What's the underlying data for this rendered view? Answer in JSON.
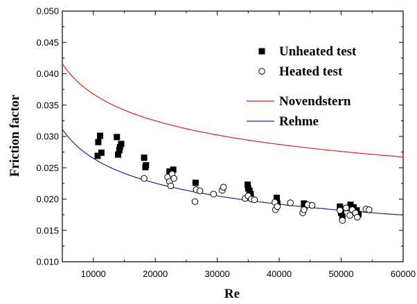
{
  "chart_data": {
    "type": "scatter",
    "title": "",
    "xlabel": "Re",
    "ylabel": "Friction factor",
    "xlim": [
      5000,
      60000
    ],
    "ylim": [
      0.01,
      0.05
    ],
    "x_ticks": [
      10000,
      20000,
      30000,
      40000,
      50000,
      60000
    ],
    "x_tick_labels": [
      "10000",
      "20000",
      "30000",
      "40000",
      "50000",
      "60000"
    ],
    "y_ticks": [
      0.01,
      0.015,
      0.02,
      0.025,
      0.03,
      0.035,
      0.04,
      0.045,
      0.05
    ],
    "y_tick_labels": [
      "0.010",
      "0.015",
      "0.020",
      "0.025",
      "0.030",
      "0.035",
      "0.040",
      "0.045",
      "0.050"
    ],
    "grid": false,
    "legend_position": "top-right",
    "series": [
      {
        "name": "Unheated test",
        "kind": "scatter",
        "marker": "filled-square",
        "color": "#000000",
        "points": [
          [
            10700,
            0.0269
          ],
          [
            10800,
            0.0291
          ],
          [
            11100,
            0.0301
          ],
          [
            11300,
            0.0274
          ],
          [
            13800,
            0.0299
          ],
          [
            14000,
            0.0271
          ],
          [
            14200,
            0.0278
          ],
          [
            14300,
            0.0283
          ],
          [
            14500,
            0.0288
          ],
          [
            18200,
            0.0266
          ],
          [
            18400,
            0.0251
          ],
          [
            18500,
            0.0254
          ],
          [
            22300,
            0.0244
          ],
          [
            22900,
            0.0247
          ],
          [
            22600,
            0.0235
          ],
          [
            26500,
            0.0226
          ],
          [
            34900,
            0.0223
          ],
          [
            35000,
            0.0217
          ],
          [
            35200,
            0.0213
          ],
          [
            35400,
            0.0208
          ],
          [
            39600,
            0.0202
          ],
          [
            39700,
            0.0193
          ],
          [
            44000,
            0.0193
          ],
          [
            44100,
            0.0189
          ],
          [
            49800,
            0.0188
          ],
          [
            50000,
            0.0178
          ],
          [
            50200,
            0.0172
          ],
          [
            51500,
            0.0191
          ],
          [
            52000,
            0.0187
          ],
          [
            52500,
            0.0182
          ],
          [
            52800,
            0.0176
          ]
        ]
      },
      {
        "name": "Heated test",
        "kind": "scatter",
        "marker": "open-circle",
        "color": "#000000",
        "points": [
          [
            18200,
            0.0233
          ],
          [
            22000,
            0.0235
          ],
          [
            22300,
            0.0228
          ],
          [
            22500,
            0.0221
          ],
          [
            22700,
            0.024
          ],
          [
            23000,
            0.0233
          ],
          [
            26400,
            0.0196
          ],
          [
            26600,
            0.0215
          ],
          [
            27200,
            0.0213
          ],
          [
            29400,
            0.0208
          ],
          [
            30800,
            0.0214
          ],
          [
            31000,
            0.0219
          ],
          [
            34500,
            0.0201
          ],
          [
            35000,
            0.0205
          ],
          [
            35500,
            0.02
          ],
          [
            36000,
            0.0199
          ],
          [
            39300,
            0.0195
          ],
          [
            39400,
            0.0183
          ],
          [
            39700,
            0.0188
          ],
          [
            41800,
            0.0194
          ],
          [
            43800,
            0.0178
          ],
          [
            44000,
            0.0183
          ],
          [
            44600,
            0.0191
          ],
          [
            45300,
            0.019
          ],
          [
            49800,
            0.0182
          ],
          [
            50200,
            0.0166
          ],
          [
            50800,
            0.0186
          ],
          [
            51400,
            0.0174
          ],
          [
            51800,
            0.0183
          ],
          [
            52300,
            0.0178
          ],
          [
            52600,
            0.0171
          ],
          [
            54000,
            0.0184
          ],
          [
            54500,
            0.0183
          ]
        ]
      },
      {
        "name": "Novendstern",
        "kind": "line",
        "color": "#e02020",
        "formula": "f = 0.1894 * Re^-0.178",
        "x_samples": [
          5000,
          10000,
          15000,
          20000,
          25000,
          30000,
          35000,
          40000,
          45000,
          50000,
          55000,
          60000
        ],
        "y_samples": [
          0.0415,
          0.0366,
          0.034,
          0.0323,
          0.031,
          0.03,
          0.0291,
          0.0284,
          0.0278,
          0.0273,
          0.0269,
          0.0265
        ]
      },
      {
        "name": "Rehme",
        "kind": "line",
        "color": "#20208c",
        "formula": "f = 0.2266 * Re^-0.233",
        "x_samples": [
          5000,
          10000,
          15000,
          20000,
          25000,
          30000,
          35000,
          40000,
          45000,
          50000,
          55000,
          60000
        ],
        "y_samples": [
          0.0313,
          0.0266,
          0.0243,
          0.0227,
          0.0216,
          0.0208,
          0.0201,
          0.0195,
          0.0189,
          0.0184,
          0.0179,
          0.0175
        ]
      }
    ]
  }
}
